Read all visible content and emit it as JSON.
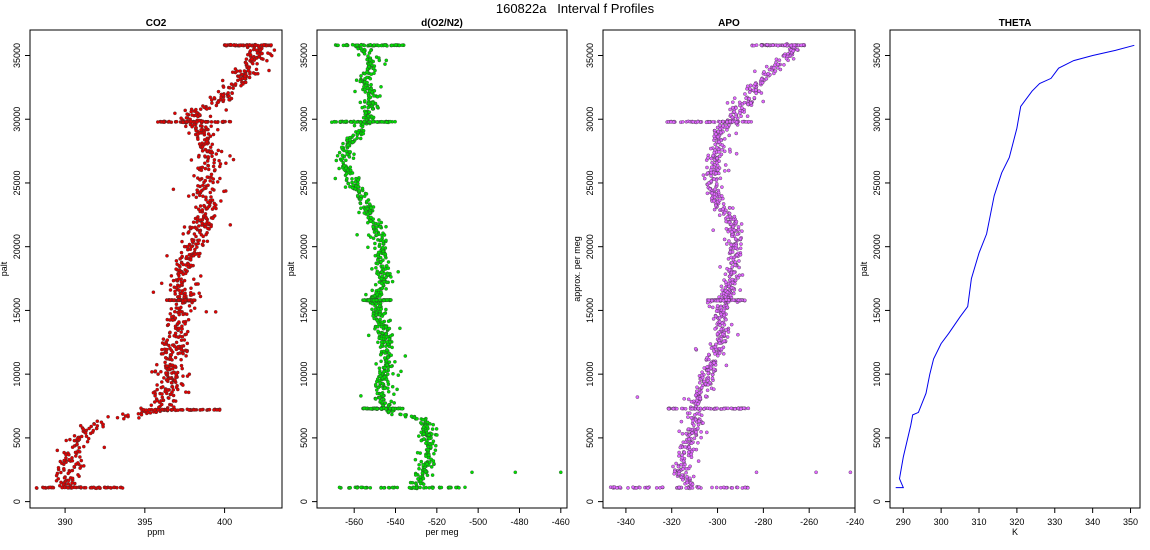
{
  "page": {
    "title": "160822a   Interval f Profiles"
  },
  "chart_data": [
    {
      "type": "scatter",
      "title": "CO2",
      "xlabel": "ppm",
      "ylabel": "palt",
      "xlim": [
        387.8,
        403.6
      ],
      "ylim": [
        -500,
        37000
      ],
      "xticks": [
        390,
        395,
        400
      ],
      "yticks": [
        0,
        5000,
        10000,
        15000,
        20000,
        25000,
        30000,
        35000
      ],
      "color": "#e00000",
      "profile": [
        [
          390.0,
          1100
        ],
        [
          390.2,
          2500
        ],
        [
          390.6,
          4000
        ],
        [
          391.2,
          5300
        ],
        [
          392.5,
          6400
        ],
        [
          394.4,
          6800
        ],
        [
          396.1,
          7200
        ],
        [
          396.3,
          8500
        ],
        [
          396.6,
          10200
        ],
        [
          396.9,
          12000
        ],
        [
          397.0,
          13500
        ],
        [
          397.3,
          15500
        ],
        [
          397.2,
          17200
        ],
        [
          397.5,
          18800
        ],
        [
          398.0,
          20000
        ],
        [
          398.4,
          21500
        ],
        [
          398.8,
          23000
        ],
        [
          398.7,
          24500
        ],
        [
          399.0,
          25700
        ],
        [
          399.2,
          27000
        ],
        [
          398.8,
          28500
        ],
        [
          398.1,
          29800
        ],
        [
          398.4,
          30800
        ],
        [
          399.8,
          31600
        ],
        [
          400.6,
          32500
        ],
        [
          401.2,
          33500
        ],
        [
          401.8,
          34500
        ],
        [
          402.4,
          35300
        ],
        [
          402.0,
          35800
        ]
      ],
      "spread": 0.8,
      "outlier_spread": 1.8,
      "horizontal_bands": [
        {
          "y": 1100,
          "x_from": 388.2,
          "x_to": 393.8
        },
        {
          "y": 7200,
          "x_from": 394.8,
          "x_to": 399.8
        },
        {
          "y": 15800,
          "x_from": 396.3,
          "x_to": 398.2
        },
        {
          "y": 29800,
          "x_from": 395.8,
          "x_to": 400.4
        },
        {
          "y": 35800,
          "x_from": 400.0,
          "x_to": 403.0
        }
      ],
      "line": false
    },
    {
      "type": "scatter",
      "title": "d(O2/N2)",
      "xlabel": "per meg",
      "ylabel": "palt",
      "xlim": [
        -578,
        -457
      ],
      "ylim": [
        -500,
        37000
      ],
      "xticks": [
        -560,
        -540,
        -520,
        -500,
        -480,
        -460
      ],
      "yticks": [
        0,
        5000,
        10000,
        15000,
        20000,
        25000,
        30000,
        35000
      ],
      "color": "#00dd00",
      "profile": [
        [
          -530,
          1100
        ],
        [
          -526,
          2500
        ],
        [
          -523,
          4000
        ],
        [
          -525,
          5300
        ],
        [
          -526,
          6400
        ],
        [
          -540,
          6900
        ],
        [
          -546,
          7500
        ],
        [
          -547,
          8500
        ],
        [
          -545,
          10000
        ],
        [
          -544,
          11500
        ],
        [
          -545,
          13000
        ],
        [
          -548,
          14500
        ],
        [
          -549,
          16000
        ],
        [
          -545,
          17500
        ],
        [
          -548,
          19000
        ],
        [
          -546,
          20500
        ],
        [
          -551,
          22000
        ],
        [
          -555,
          23500
        ],
        [
          -560,
          25000
        ],
        [
          -565,
          26500
        ],
        [
          -563,
          28000
        ],
        [
          -556,
          29300
        ],
        [
          -553,
          30300
        ],
        [
          -551,
          31500
        ],
        [
          -555,
          33000
        ],
        [
          -551,
          34500
        ],
        [
          -557,
          35800
        ]
      ],
      "spread": 3.5,
      "outlier_spread": 9,
      "horizontal_bands": [
        {
          "y": 1100,
          "x_from": -568,
          "x_to": -505
        },
        {
          "y": 7300,
          "x_from": -556,
          "x_to": -536
        },
        {
          "y": 15800,
          "x_from": -556,
          "x_to": -542
        },
        {
          "y": 29800,
          "x_from": -571,
          "x_to": -540
        },
        {
          "y": 35800,
          "x_from": -569,
          "x_to": -536
        }
      ],
      "extra_points": [
        [
          -503,
          2300
        ],
        [
          -482,
          2300
        ],
        [
          -460,
          2300
        ]
      ],
      "line": false
    },
    {
      "type": "scatter",
      "title": "APO",
      "xlabel": "",
      "ylabel": "approx. per meg",
      "xlim": [
        -350,
        -240
      ],
      "ylim": [
        -500,
        37000
      ],
      "xticks": [
        -340,
        -320,
        -300,
        -280,
        -260,
        -240
      ],
      "yticks": [
        0,
        5000,
        10000,
        15000,
        20000,
        25000,
        30000,
        35000
      ],
      "color": "#e066ff",
      "profile": [
        [
          -312,
          1100
        ],
        [
          -316,
          2500
        ],
        [
          -313,
          4000
        ],
        [
          -311,
          5300
        ],
        [
          -309,
          6400
        ],
        [
          -310,
          7300
        ],
        [
          -307,
          8500
        ],
        [
          -304,
          10000
        ],
        [
          -301,
          11500
        ],
        [
          -298,
          13000
        ],
        [
          -299,
          14500
        ],
        [
          -297,
          16000
        ],
        [
          -294,
          17500
        ],
        [
          -293,
          19000
        ],
        [
          -292,
          20500
        ],
        [
          -293,
          22000
        ],
        [
          -300,
          23500
        ],
        [
          -302,
          25000
        ],
        [
          -301,
          26500
        ],
        [
          -300,
          28000
        ],
        [
          -298,
          29300
        ],
        [
          -292,
          30300
        ],
        [
          -287,
          31500
        ],
        [
          -281,
          33000
        ],
        [
          -272,
          34500
        ],
        [
          -266,
          35800
        ]
      ],
      "spread": 3.5,
      "outlier_spread": 8,
      "horizontal_bands": [
        {
          "y": 1100,
          "x_from": -347,
          "x_to": -286
        },
        {
          "y": 7300,
          "x_from": -322,
          "x_to": -286
        },
        {
          "y": 15800,
          "x_from": -305,
          "x_to": -288
        },
        {
          "y": 29800,
          "x_from": -322,
          "x_to": -285
        },
        {
          "y": 35800,
          "x_from": -285,
          "x_to": -262
        }
      ],
      "extra_points": [
        [
          -283,
          2300
        ],
        [
          -257,
          2300
        ],
        [
          -242,
          2300
        ],
        [
          -335,
          8200
        ]
      ],
      "line": false
    },
    {
      "type": "line",
      "title": "THETA",
      "xlabel": "K",
      "ylabel": "palt",
      "xlim": [
        286.5,
        352.5
      ],
      "ylim": [
        -500,
        37000
      ],
      "xticks": [
        290,
        300,
        310,
        320,
        330,
        340,
        350
      ],
      "yticks": [
        0,
        5000,
        10000,
        15000,
        20000,
        25000,
        30000,
        35000
      ],
      "color": "#0000ee",
      "profile": [
        [
          288,
          1100
        ],
        [
          290,
          1100
        ],
        [
          289,
          1800
        ],
        [
          290,
          3500
        ],
        [
          292,
          6000
        ],
        [
          292.5,
          6800
        ],
        [
          294,
          7000
        ],
        [
          296,
          8500
        ],
        [
          297,
          10000
        ],
        [
          298,
          11200
        ],
        [
          300,
          12400
        ],
        [
          302,
          13200
        ],
        [
          305,
          14500
        ],
        [
          307,
          15300
        ],
        [
          308,
          17500
        ],
        [
          310,
          19500
        ],
        [
          312,
          21000
        ],
        [
          313,
          22500
        ],
        [
          314,
          24000
        ],
        [
          316,
          25800
        ],
        [
          318,
          27000
        ],
        [
          320,
          29300
        ],
        [
          321,
          31000
        ],
        [
          324,
          32200
        ],
        [
          326,
          32800
        ],
        [
          329,
          33200
        ],
        [
          331,
          34000
        ],
        [
          335,
          34600
        ],
        [
          340,
          35000
        ],
        [
          346,
          35400
        ],
        [
          351,
          35800
        ]
      ],
      "line": true
    }
  ]
}
